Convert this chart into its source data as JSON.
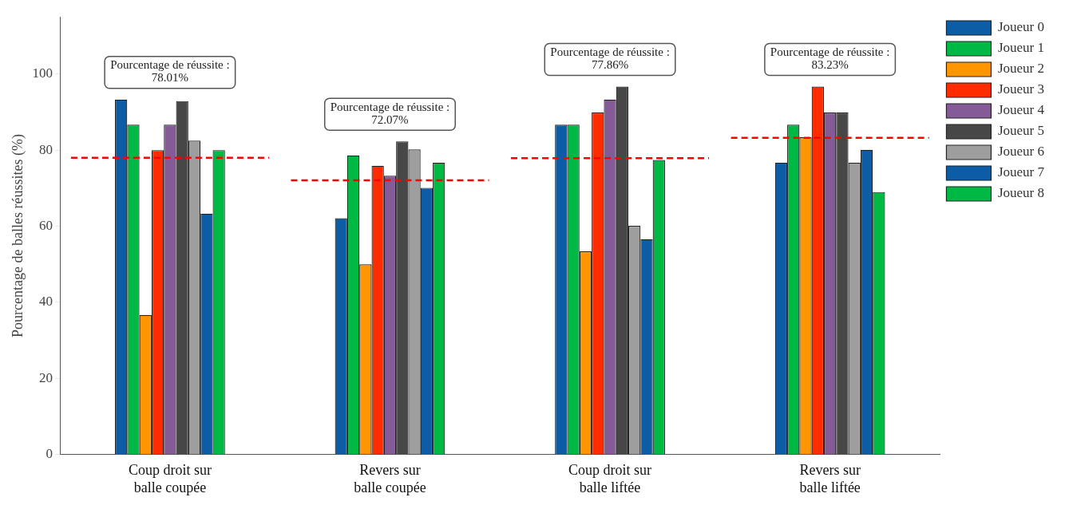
{
  "chart_data": {
    "type": "bar",
    "ylabel": "Pourcentage de balles réussites (%)",
    "categories": [
      "Coup droit sur balle coupée",
      "Revers sur balle coupée",
      "Coup droit sur balle liftée",
      "Revers sur balle liftée"
    ],
    "series": [
      {
        "name": "Joueur 0",
        "color": "#0c5da5",
        "values": [
          93.3,
          62.1,
          86.7,
          76.7
        ]
      },
      {
        "name": "Joueur 1",
        "color": "#00b945",
        "values": [
          86.7,
          78.6,
          86.7,
          86.7
        ]
      },
      {
        "name": "Joueur 2",
        "color": "#ff9500",
        "values": [
          36.7,
          50.0,
          53.4,
          83.4
        ]
      },
      {
        "name": "Joueur 3",
        "color": "#ff2c00",
        "values": [
          80.0,
          75.9,
          89.9,
          96.7
        ]
      },
      {
        "name": "Joueur 4",
        "color": "#845b97",
        "values": [
          86.7,
          73.3,
          93.3,
          89.9
        ]
      },
      {
        "name": "Joueur 5",
        "color": "#474747",
        "values": [
          92.9,
          82.3,
          96.7,
          89.9
        ]
      },
      {
        "name": "Joueur 6",
        "color": "#9e9e9e",
        "values": [
          82.5,
          80.2,
          60.1,
          76.7
        ]
      },
      {
        "name": "Joueur 7",
        "color": "#0c5da5",
        "values": [
          63.3,
          70.1,
          56.6,
          80.1
        ]
      },
      {
        "name": "Joueur 8",
        "color": "#00b945",
        "values": [
          80.0,
          76.7,
          77.4,
          69.0
        ]
      }
    ],
    "ylim": [
      0,
      115
    ],
    "yticks": [
      0,
      20,
      40,
      60,
      80,
      100
    ],
    "ref_lines": [
      {
        "axis": "y",
        "value": 78.01,
        "color": "#ff0000",
        "line_style": "dashed"
      },
      {
        "axis": "y",
        "value": 72.07,
        "color": "#ff0000",
        "line_style": "dashed"
      },
      {
        "axis": "y",
        "value": 77.86,
        "color": "#ff0000",
        "line_style": "dashed"
      },
      {
        "axis": "y",
        "value": 83.23,
        "color": "#ff0000",
        "line_style": "dashed"
      }
    ],
    "annotations": [
      "Pourcentage de réussite :\n78.01%",
      "Pourcentage de réussite :\n72.07%",
      "Pourcentage de réussite :\n77.86%",
      "Pourcentage de réussite :\n83.23%"
    ],
    "grid": false,
    "legend": "top right"
  }
}
